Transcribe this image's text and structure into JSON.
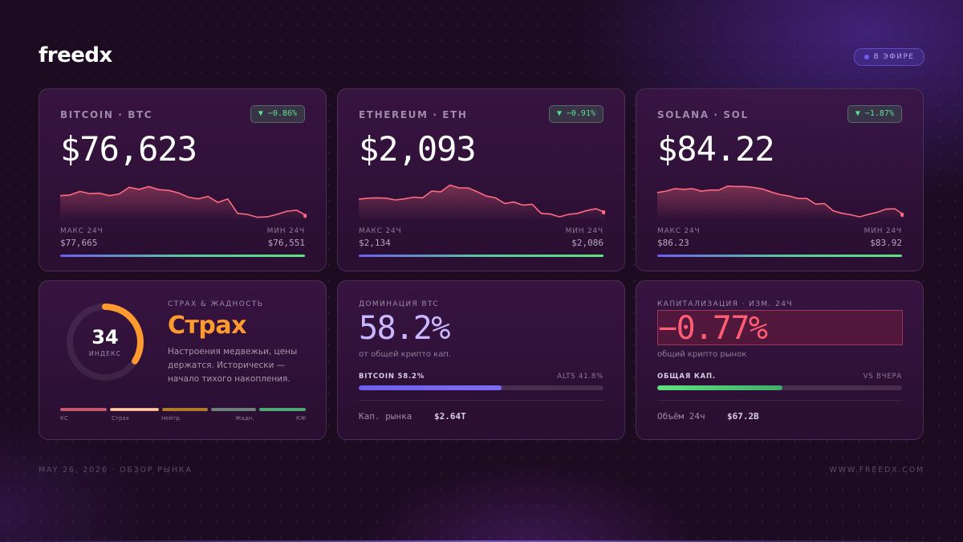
{
  "brand": {
    "logo": "freedx"
  },
  "live": {
    "label": "В ЭФИРЕ"
  },
  "coins": [
    {
      "name": "BITCOIN · BTC",
      "change": "▼ −0.86%",
      "price": "$76,623",
      "high_label": "МАКС 24Ч",
      "high": "$77,665",
      "low_label": "МИН 24Ч",
      "low": "$76,551",
      "spark": [
        0.62,
        0.64,
        0.74,
        0.68,
        0.69,
        0.62,
        0.67,
        0.86,
        0.8,
        0.88,
        0.79,
        0.77,
        0.7,
        0.58,
        0.53,
        0.6,
        0.43,
        0.53,
        0.12,
        0.09,
        0.01,
        0.02,
        0.09,
        0.18,
        0.21,
        0.05
      ]
    },
    {
      "name": "ETHEREUM · ETH",
      "change": "▼ −0.91%",
      "price": "$2,093",
      "high_label": "МАКС 24Ч",
      "high": "$2,134",
      "low_label": "МИН 24Ч",
      "low": "$2,086",
      "spark": [
        0.52,
        0.55,
        0.56,
        0.55,
        0.5,
        0.53,
        0.58,
        0.56,
        0.75,
        0.73,
        0.92,
        0.84,
        0.84,
        0.73,
        0.61,
        0.56,
        0.4,
        0.44,
        0.35,
        0.38,
        0.12,
        0.1,
        0.02,
        0.09,
        0.12,
        0.2,
        0.25,
        0.15
      ]
    },
    {
      "name": "SOLANA · SOL",
      "change": "▼ −1.87%",
      "price": "$84.22",
      "high_label": "МАКС 24Ч",
      "high": "$86.23",
      "low_label": "МИН 24Ч",
      "low": "$83.92",
      "spark": [
        0.71,
        0.75,
        0.82,
        0.8,
        0.82,
        0.75,
        0.78,
        0.78,
        0.89,
        0.88,
        0.88,
        0.85,
        0.81,
        0.72,
        0.65,
        0.61,
        0.54,
        0.54,
        0.38,
        0.4,
        0.19,
        0.12,
        0.08,
        0.02,
        0.09,
        0.15,
        0.24,
        0.25,
        0.08
      ]
    }
  ],
  "fear_greed": {
    "value": "34",
    "index_label": "ИНДЕКС",
    "level": 0.34,
    "title": "СТРАХ & ЖАДНОСТЬ",
    "status": "Страх",
    "description": "Настроения медвежьи, цены держатся. Исторически — начало тихого накопления.",
    "scale": [
      "КС",
      "Страх",
      "Нейтр.",
      "Жадн.",
      "КЖ"
    ],
    "colors": {
      "status": "#ff9a2e"
    }
  },
  "dominance": {
    "title": "ДОМИНАЦИЯ BTC",
    "value": "58.2%",
    "subtitle": "от общей крипто кап.",
    "left_label": "BITCOIN 58.2%",
    "right_label": "ALTS 41.8%",
    "fraction": 0.582,
    "footer_key": "Кап. рынка",
    "footer_value": "$2.64T"
  },
  "capitalization": {
    "title": "КАПИТАЛИЗАЦИЯ · ИЗМ. 24Ч",
    "value": "−0.77%",
    "subtitle": "общий крипто рынок",
    "left_label": "ОБЩАЯ КАП.",
    "right_label": "VS ВЧЕРА",
    "fraction": 0.51,
    "footer_key": "Объём 24ч",
    "footer_value": "$67.2B"
  },
  "footer": {
    "left": "MAY 26, 2026 · ОБЗОР РЫНКА",
    "right": "WWW.FREEDX.COM"
  },
  "colors": {
    "accent": "#6d5ff0",
    "up": "#5fe27f",
    "down": "#ff5d73",
    "spark": "#ff6b7f"
  }
}
